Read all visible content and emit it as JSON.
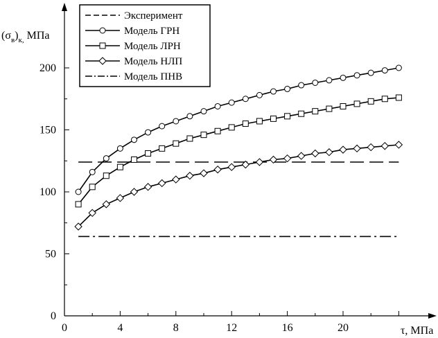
{
  "chart_data": {
    "type": "line",
    "xlabel": "τ, МПа",
    "ylabel_main": "(σ",
    "ylabel_sub1": "в",
    "ylabel_close": ")",
    "ylabel_sub2": "к,",
    "ylabel_unit": " МПа",
    "xlim": [
      0,
      24
    ],
    "ylim": [
      0,
      200
    ],
    "x_ticks": [
      0,
      4,
      8,
      12,
      16,
      20
    ],
    "x_tick_labels": [
      "0",
      "4",
      "8",
      "12",
      "16",
      "20"
    ],
    "y_ticks": [
      0,
      50,
      100,
      150,
      200
    ],
    "y_tick_labels": [
      "0",
      "50",
      "100",
      "150",
      "200"
    ],
    "grid": false,
    "legend_position": "top-left",
    "series": [
      {
        "name": "Эксперимент",
        "style": "dashed",
        "marker": "none",
        "x": [
          1,
          24
        ],
        "y": [
          124,
          124
        ]
      },
      {
        "name": "Модель ГРН",
        "style": "solid",
        "marker": "circle",
        "x": [
          1,
          2,
          3,
          4,
          5,
          6,
          7,
          8,
          9,
          10,
          11,
          12,
          13,
          14,
          15,
          16,
          17,
          18,
          19,
          20,
          21,
          22,
          23,
          24
        ],
        "y": [
          100,
          116,
          127,
          135,
          142,
          148,
          153,
          157,
          161,
          165,
          169,
          172,
          175,
          178,
          181,
          183,
          186,
          188,
          190,
          192,
          194,
          196,
          198,
          200
        ]
      },
      {
        "name": "Модель ЛРН",
        "style": "solid",
        "marker": "square",
        "x": [
          1,
          2,
          3,
          4,
          5,
          6,
          7,
          8,
          9,
          10,
          11,
          12,
          13,
          14,
          15,
          16,
          17,
          18,
          19,
          20,
          21,
          22,
          23,
          24
        ],
        "y": [
          90,
          104,
          113,
          120,
          126,
          131,
          135,
          139,
          143,
          146,
          149,
          152,
          155,
          157,
          159,
          161,
          163,
          165,
          167,
          169,
          171,
          173,
          175,
          176
        ]
      },
      {
        "name": "Модель НЛП",
        "style": "solid",
        "marker": "diamond",
        "x": [
          1,
          2,
          3,
          4,
          5,
          6,
          7,
          8,
          9,
          10,
          11,
          12,
          13,
          14,
          15,
          16,
          17,
          18,
          19,
          20,
          21,
          22,
          23,
          24
        ],
        "y": [
          72,
          83,
          90,
          95,
          100,
          104,
          107,
          110,
          113,
          115,
          118,
          120,
          122,
          124,
          126,
          127,
          129,
          131,
          132,
          134,
          135,
          136,
          137,
          138
        ]
      },
      {
        "name": "Модель ПНВ",
        "style": "dashdot",
        "marker": "none",
        "x": [
          1,
          24
        ],
        "y": [
          64,
          64
        ]
      }
    ]
  }
}
